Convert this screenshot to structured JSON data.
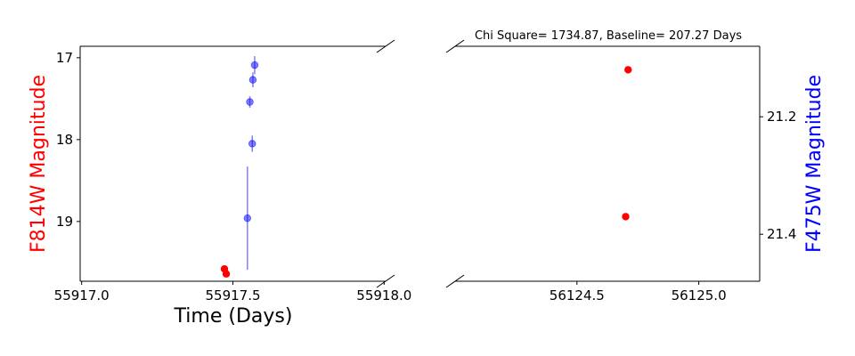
{
  "chart_data": {
    "type": "scatter",
    "title": "Chi Square= 1734.87, Baseline= 207.27 Days",
    "xlabel": "Time (Days)",
    "left_panel": {
      "ylabel": "F814W Magnitude",
      "ylabel_color": "#ff0000",
      "xlim": [
        55916.995,
        55918.005
      ],
      "ylim": [
        19.73,
        16.86
      ],
      "y_inverted": true,
      "xticks": [
        55917.0,
        55917.5,
        55918.0
      ],
      "xtick_labels": [
        "55917.0",
        "55917.5",
        "55918.0"
      ],
      "yticks": [
        17,
        18,
        19
      ],
      "ytick_labels": [
        "17",
        "18",
        "19"
      ],
      "series": [
        {
          "color": "#ff0000",
          "marker": "circle",
          "points": [
            {
              "x": 55917.472,
              "y": 19.58
            },
            {
              "x": 55917.478,
              "y": 19.64
            }
          ]
        },
        {
          "color": "#0000ff",
          "marker": "circle-translucent",
          "points": [
            {
              "x": 55917.548,
              "y": 18.96,
              "yerr": 0.63
            },
            {
              "x": 55917.556,
              "y": 17.54,
              "yerr": 0.07
            },
            {
              "x": 55917.564,
              "y": 18.05,
              "yerr": 0.1
            },
            {
              "x": 55917.566,
              "y": 17.27,
              "yerr": 0.09
            },
            {
              "x": 55917.572,
              "y": 17.09,
              "yerr": 0.11
            }
          ]
        }
      ]
    },
    "right_panel": {
      "ylabel": "F475W Magnitude",
      "ylabel_color": "#0000ff",
      "xlim": [
        56124.0,
        56125.25
      ],
      "ylim": [
        21.48,
        21.08
      ],
      "y_inverted": true,
      "xticks": [
        56124.5,
        56125.0
      ],
      "xtick_labels": [
        "56124.5",
        "56125.0"
      ],
      "yticks": [
        21.2,
        21.4
      ],
      "ytick_labels": [
        "21.2",
        "21.4"
      ],
      "series": [
        {
          "color": "#ff0000",
          "marker": "circle",
          "points": [
            {
              "x": 56124.71,
              "y": 21.12
            },
            {
              "x": 56124.7,
              "y": 21.37
            }
          ]
        }
      ]
    }
  }
}
